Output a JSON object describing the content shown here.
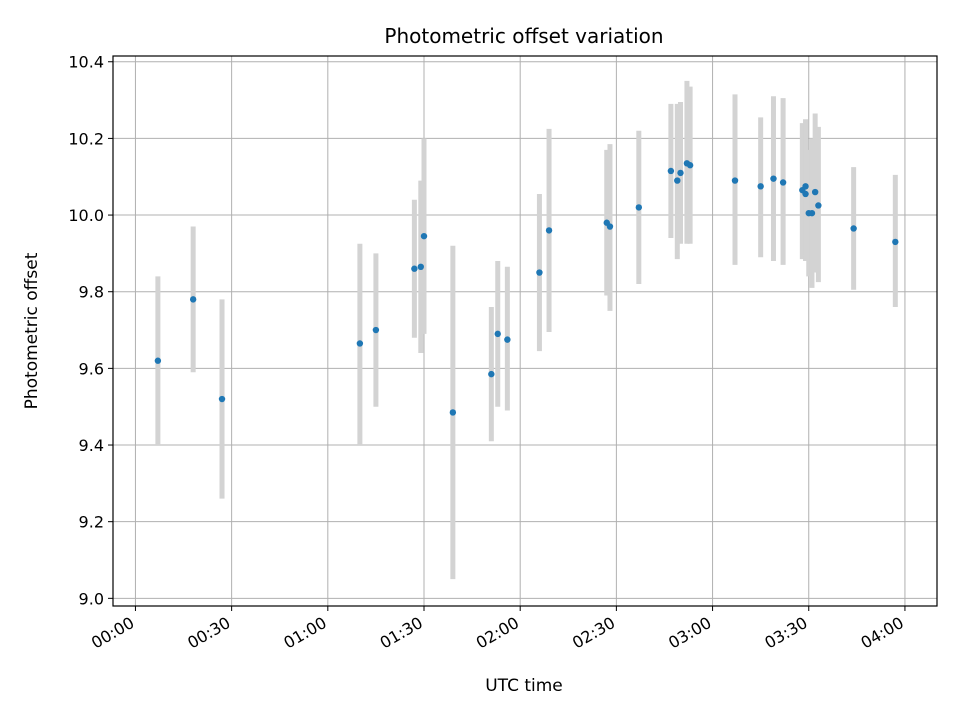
{
  "chart_data": {
    "type": "scatter",
    "title": "Photometric offset variation",
    "xlabel": "UTC time",
    "ylabel": "Photometric offset",
    "x_unit": "UTC time (HH:MM)",
    "xlim": [
      "23:53",
      "04:10"
    ],
    "ylim": [
      8.98,
      10.415
    ],
    "grid": true,
    "marker_color": "#1f77b4",
    "errorbar_color": "#d3d3d3",
    "x_ticks": [
      "00:00",
      "00:30",
      "01:00",
      "01:30",
      "02:00",
      "02:30",
      "03:00",
      "03:30",
      "04:00"
    ],
    "y_ticks": [
      9.0,
      9.2,
      9.4,
      9.6,
      9.8,
      10.0,
      10.2,
      10.4
    ],
    "y_tick_labels": [
      "9.0",
      "9.2",
      "9.4",
      "9.6",
      "9.8",
      "10.0",
      "10.2",
      "10.4"
    ],
    "points": [
      {
        "x": "00:07",
        "y": 9.62,
        "lo": 9.4,
        "hi": 9.84
      },
      {
        "x": "00:18",
        "y": 9.78,
        "lo": 9.59,
        "hi": 9.97
      },
      {
        "x": "00:27",
        "y": 9.52,
        "lo": 9.26,
        "hi": 9.78
      },
      {
        "x": "01:10",
        "y": 9.665,
        "lo": 9.4,
        "hi": 9.925
      },
      {
        "x": "01:15",
        "y": 9.7,
        "lo": 9.5,
        "hi": 9.9
      },
      {
        "x": "01:27",
        "y": 9.86,
        "lo": 9.68,
        "hi": 10.04
      },
      {
        "x": "01:29",
        "y": 9.865,
        "lo": 9.64,
        "hi": 10.09
      },
      {
        "x": "01:30",
        "y": 9.945,
        "lo": 9.69,
        "hi": 10.2
      },
      {
        "x": "01:39",
        "y": 9.485,
        "lo": 9.05,
        "hi": 9.92
      },
      {
        "x": "01:51",
        "y": 9.585,
        "lo": 9.41,
        "hi": 9.76
      },
      {
        "x": "01:53",
        "y": 9.69,
        "lo": 9.5,
        "hi": 9.88
      },
      {
        "x": "01:56",
        "y": 9.675,
        "lo": 9.49,
        "hi": 9.865
      },
      {
        "x": "02:06",
        "y": 9.85,
        "lo": 9.645,
        "hi": 10.055
      },
      {
        "x": "02:09",
        "y": 9.96,
        "lo": 9.695,
        "hi": 10.225
      },
      {
        "x": "02:27",
        "y": 9.98,
        "lo": 9.79,
        "hi": 10.17
      },
      {
        "x": "02:28",
        "y": 9.97,
        "lo": 9.75,
        "hi": 10.185
      },
      {
        "x": "02:37",
        "y": 10.02,
        "lo": 9.82,
        "hi": 10.22
      },
      {
        "x": "02:47",
        "y": 10.115,
        "lo": 9.94,
        "hi": 10.29
      },
      {
        "x": "02:49",
        "y": 10.09,
        "lo": 9.885,
        "hi": 10.29
      },
      {
        "x": "02:50",
        "y": 10.11,
        "lo": 9.925,
        "hi": 10.295
      },
      {
        "x": "02:52",
        "y": 10.135,
        "lo": 9.925,
        "hi": 10.35
      },
      {
        "x": "02:53",
        "y": 10.13,
        "lo": 9.925,
        "hi": 10.335
      },
      {
        "x": "03:07",
        "y": 10.09,
        "lo": 9.87,
        "hi": 10.315
      },
      {
        "x": "03:15",
        "y": 10.075,
        "lo": 9.89,
        "hi": 10.255
      },
      {
        "x": "03:19",
        "y": 10.095,
        "lo": 9.88,
        "hi": 10.31
      },
      {
        "x": "03:22",
        "y": 10.085,
        "lo": 9.87,
        "hi": 10.305
      },
      {
        "x": "03:28",
        "y": 10.065,
        "lo": 9.885,
        "hi": 10.24
      },
      {
        "x": "03:29",
        "y": 10.055,
        "lo": 9.88,
        "hi": 10.25
      },
      {
        "x": "03:29",
        "y": 10.075,
        "lo": 9.895,
        "hi": 10.175
      },
      {
        "x": "03:30",
        "y": 10.005,
        "lo": 9.84,
        "hi": 10.17
      },
      {
        "x": "03:31",
        "y": 10.005,
        "lo": 9.81,
        "hi": 10.2
      },
      {
        "x": "03:32",
        "y": 10.06,
        "lo": 9.85,
        "hi": 10.265
      },
      {
        "x": "03:33",
        "y": 10.025,
        "lo": 9.825,
        "hi": 10.23
      },
      {
        "x": "03:44",
        "y": 9.965,
        "lo": 9.805,
        "hi": 10.125
      },
      {
        "x": "03:57",
        "y": 9.93,
        "lo": 9.76,
        "hi": 10.105
      }
    ]
  }
}
